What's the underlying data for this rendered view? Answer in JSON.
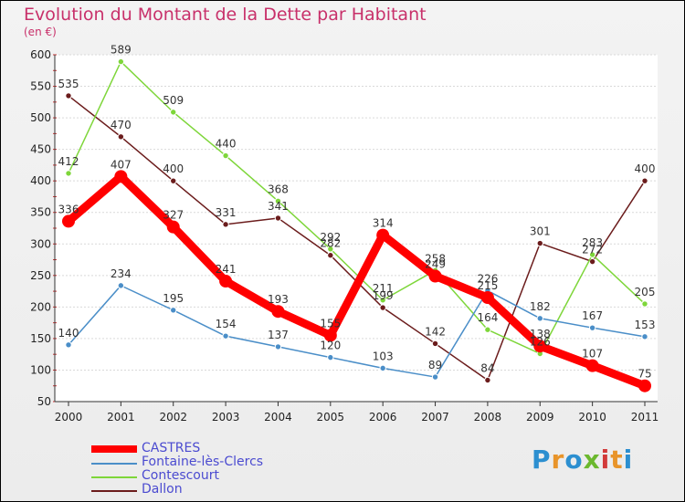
{
  "title": "Evolution du Montant de la Dette par Habitant",
  "unit": "(en €)",
  "logo": {
    "text": "Proxiti",
    "colors": [
      "#2c8fd0",
      "#e8942a",
      "#2c8fd0",
      "#6bb82e",
      "#d23a3a",
      "#e8942a",
      "#2c8fd0"
    ]
  },
  "chart_data": {
    "type": "line",
    "title": "Evolution du Montant de la Dette par Habitant",
    "ylabel": "(en €)",
    "xlabel": "",
    "ylim": [
      50,
      600
    ],
    "yticks": [
      "50",
      "100",
      "150",
      "200",
      "250",
      "300",
      "350",
      "400",
      "450",
      "500",
      "550",
      "600"
    ],
    "x": [
      "2000",
      "2001",
      "2002",
      "2003",
      "2004",
      "2005",
      "2006",
      "2007",
      "2008",
      "2009",
      "2010",
      "2011"
    ],
    "legend": "bottom-left",
    "series": [
      {
        "name": "CASTRES",
        "color": "#ff0000",
        "values": [
          336,
          407,
          327,
          241,
          193,
          155,
          314,
          249,
          215,
          138,
          107,
          75
        ]
      },
      {
        "name": "Fontaine-lès-Clercs",
        "color": "#4a8ec8",
        "values": [
          140,
          234,
          195,
          154,
          137,
          120,
          103,
          89,
          226,
          182,
          167,
          153
        ]
      },
      {
        "name": "Contescourt",
        "color": "#7ed63a",
        "values": [
          412,
          589,
          509,
          440,
          368,
          292,
          211,
          258,
          164,
          126,
          283,
          205
        ]
      },
      {
        "name": "Dallon",
        "color": "#6b1c1c",
        "values": [
          535,
          470,
          400,
          331,
          341,
          282,
          199,
          142,
          84,
          301,
          272,
          400
        ]
      }
    ]
  }
}
